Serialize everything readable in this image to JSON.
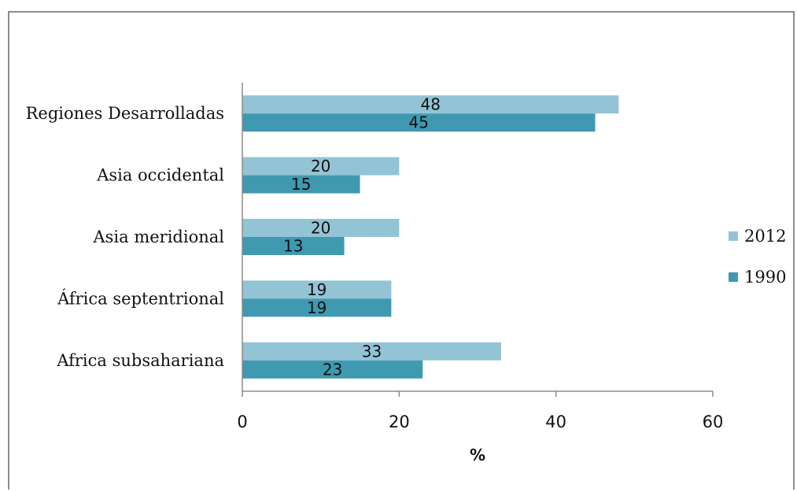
{
  "chart_data": {
    "type": "bar",
    "orientation": "horizontal",
    "categories": [
      "Regiones Desarrolladas",
      "Asia occidental",
      "Asia meridional",
      "África septentrional",
      "Africa subsahariana"
    ],
    "series": [
      {
        "name": "2012",
        "values": [
          48,
          20,
          20,
          19,
          33
        ],
        "color": "#93c4d6"
      },
      {
        "name": "1990",
        "values": [
          45,
          15,
          13,
          19,
          23
        ],
        "color": "#3f99b0"
      }
    ],
    "xlabel": "%",
    "xlim": [
      0,
      60
    ],
    "xticks": [
      0,
      20,
      40,
      60
    ],
    "grid": false,
    "legend": "right"
  }
}
